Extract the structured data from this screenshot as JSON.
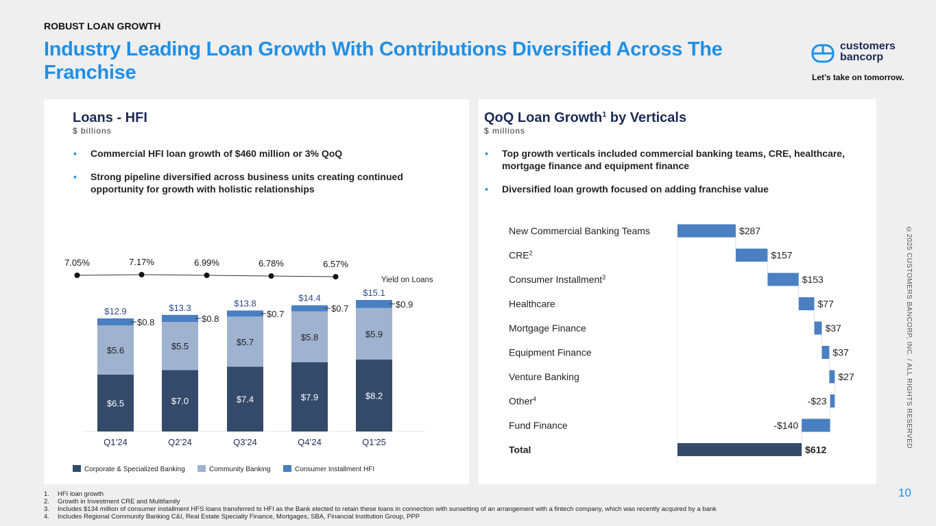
{
  "header": {
    "kicker": "ROBUST LOAN GROWTH",
    "title": "Industry Leading Loan Growth With Contributions Diversified Across The Franchise"
  },
  "logo": {
    "name_line1": "customers",
    "name_line2": "bancorp",
    "tagline": "Let’s take on tomorrow.",
    "brand_color": "#1e90e8"
  },
  "left": {
    "title": "Loans - HFI",
    "subtitle": "$ billions",
    "bullets": [
      "Commercial HFI loan growth of $460 million or 3% QoQ",
      "Strong pipeline diversified across business units creating continued opportunity for growth with holistic relationships"
    ]
  },
  "right": {
    "title": "QoQ Loan Growth",
    "title_sup": "1",
    "title_rest": " by Verticals",
    "subtitle": "$ millions",
    "bullets": [
      "Top growth verticals included commercial banking teams, CRE, healthcare, mortgage finance and equipment finance",
      "Diversified loan growth focused on adding franchise value"
    ]
  },
  "chart_data": [
    {
      "type": "bar",
      "stacked": true,
      "categories": [
        "Q1’24",
        "Q2’24",
        "Q3’24",
        "Q4’24",
        "Q1’25"
      ],
      "series": [
        {
          "name": "Corporate & Specialized Banking",
          "values": [
            6.5,
            7.0,
            7.4,
            7.9,
            8.2
          ],
          "color": "#344a6b"
        },
        {
          "name": "Community Banking",
          "values": [
            5.6,
            5.5,
            5.7,
            5.8,
            5.9
          ],
          "color": "#9fb2cf"
        },
        {
          "name": "Consumer Installment HFI",
          "values": [
            0.8,
            0.8,
            0.7,
            0.7,
            0.9
          ],
          "color": "#4a7fc1"
        }
      ],
      "totals": [
        12.9,
        13.3,
        13.8,
        14.4,
        15.1
      ],
      "line": {
        "name": "Yield on Loans",
        "values": [
          "7.05%",
          "7.17%",
          "6.99%",
          "6.78%",
          "6.57%"
        ],
        "numeric": [
          7.05,
          7.17,
          6.99,
          6.78,
          6.57
        ]
      },
      "legend": "bottom",
      "grid": false
    },
    {
      "type": "bar",
      "orientation": "horizontal",
      "waterfall": true,
      "categories": [
        {
          "label": "New Commercial Banking Teams",
          "sup": ""
        },
        {
          "label": "CRE",
          "sup": "2"
        },
        {
          "label": "Consumer Installment",
          "sup": "3"
        },
        {
          "label": "Healthcare",
          "sup": ""
        },
        {
          "label": "Mortgage Finance",
          "sup": ""
        },
        {
          "label": "Equipment Finance",
          "sup": ""
        },
        {
          "label": "Venture Banking",
          "sup": ""
        },
        {
          "label": "Other",
          "sup": "4"
        },
        {
          "label": "Fund Finance",
          "sup": ""
        },
        {
          "label": "Total",
          "sup": ""
        }
      ],
      "values": [
        287,
        157,
        153,
        77,
        37,
        37,
        27,
        -23,
        -140,
        612
      ],
      "labels": [
        "$287",
        "$157",
        "$153",
        "$77",
        "$37",
        "$37",
        "$27",
        "-$23",
        "-$140",
        "$612"
      ],
      "colors": {
        "step": "#4a7fc1",
        "total": "#344a6b"
      }
    }
  ],
  "copyright": "©2025 CUSTOMERS BANCORP, INC. / ALL RIGHTS RESERVED",
  "page_number": "10",
  "footnotes": [
    {
      "n": "1.",
      "t": "HFI loan growth"
    },
    {
      "n": "2.",
      "t": "Growth in Investment CRE and Multifamily"
    },
    {
      "n": "3.",
      "t": "Includes $134 million of consumer installment HFS loans transferred to HFI as the Bank elected to retain these loans in connection with sunsetting of an arrangement with a fintech company, which was recently acquired by a bank"
    },
    {
      "n": "4.",
      "t": "Includes Regional Community Banking C&I, Real Estate Specialty Finance, Mortgages, SBA, Financial Institution Group, PPP"
    }
  ]
}
